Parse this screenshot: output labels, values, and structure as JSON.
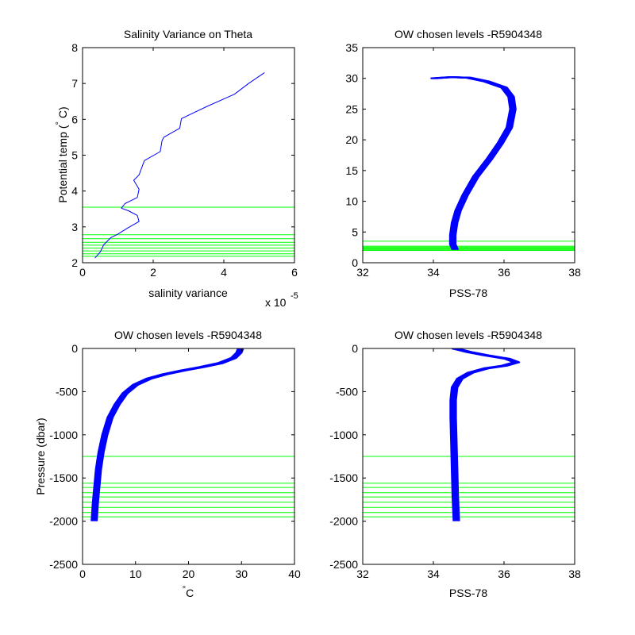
{
  "colors": {
    "data": "#0000ff",
    "levels": "#00ff00",
    "axes": "#000000"
  },
  "chart_data": [
    {
      "id": "p1",
      "type": "line",
      "title": "Salinity Variance on Theta",
      "xlabel": "salinity variance",
      "ylabel_main": "Potential temp",
      "ylabel_deg": "°",
      "ylabel_tail": " C)",
      "ylabel_paren": "(",
      "multiplier_text": "x 10",
      "multiplier_exp": "-5",
      "xlim": [
        0,
        6
      ],
      "ylim": [
        2,
        8
      ],
      "xticks": [
        0,
        2,
        4,
        6
      ],
      "xtick_labels": [
        "0",
        "2",
        "4",
        "6"
      ],
      "yticks": [
        2,
        3,
        4,
        5,
        6,
        7,
        8
      ],
      "ytick_labels": [
        "2",
        "3",
        "4",
        "5",
        "6",
        "7",
        "8"
      ],
      "grid": false,
      "series": [
        {
          "x": [
            0.35,
            0.5,
            0.6,
            0.8,
            1.0,
            1.3,
            1.6,
            1.55,
            1.3,
            1.1,
            1.2,
            1.55,
            1.6,
            1.45,
            1.6,
            1.75,
            2.2,
            2.25,
            2.3,
            2.75,
            2.8,
            3.5,
            4.3,
            4.7,
            5.15
          ],
          "y": [
            2.13,
            2.3,
            2.5,
            2.7,
            2.8,
            2.98,
            3.15,
            3.32,
            3.45,
            3.52,
            3.65,
            3.82,
            4.05,
            4.3,
            4.45,
            4.85,
            5.1,
            5.4,
            5.5,
            5.75,
            6.02,
            6.35,
            6.7,
            7.0,
            7.3
          ]
        }
      ],
      "hlines": [
        3.55,
        2.78,
        2.67,
        2.57,
        2.49,
        2.41,
        2.33,
        2.25,
        2.18
      ]
    },
    {
      "id": "p2",
      "type": "line",
      "title": "OW chosen levels -R5904348",
      "xlabel": "PSS-78",
      "xlim": [
        32,
        38
      ],
      "ylim": [
        0,
        35
      ],
      "xticks": [
        32,
        34,
        36,
        38
      ],
      "xtick_labels": [
        "32",
        "34",
        "36",
        "38"
      ],
      "yticks": [
        0,
        5,
        10,
        15,
        20,
        25,
        30,
        35
      ],
      "ytick_labels": [
        "0",
        "5",
        "10",
        "15",
        "20",
        "25",
        "30",
        "35"
      ],
      "grid": false,
      "series": [
        {
          "x": [
            34.62,
            34.55,
            34.55,
            34.6,
            34.7,
            34.9,
            35.2,
            35.6,
            35.9,
            36.15,
            36.25,
            36.2,
            36.0,
            35.5,
            35.0,
            34.5,
            34.0
          ],
          "y": [
            2.1,
            3.0,
            4.5,
            6.5,
            8.5,
            11,
            14,
            17,
            19.5,
            22,
            25,
            27,
            28.5,
            29.5,
            30.1,
            30.2,
            30.0
          ]
        }
      ],
      "band_offsets": [
        -0.08,
        -0.04,
        0,
        0.04,
        0.08
      ],
      "hlines": [
        3.5,
        2.7,
        2.55,
        2.4,
        2.25,
        2.1,
        2.0
      ]
    },
    {
      "id": "p3",
      "type": "line",
      "title": "OW chosen levels -R5904348",
      "xlabel": "C",
      "xlabel_deg": "°",
      "ylabel": "Pressure (dbar)",
      "xlim": [
        0,
        40
      ],
      "ylim": [
        -2500,
        0
      ],
      "xticks": [
        0,
        10,
        20,
        30,
        40
      ],
      "xtick_labels": [
        "0",
        "10",
        "20",
        "30",
        "40"
      ],
      "yticks": [
        -2500,
        -2000,
        -1500,
        -1000,
        -500,
        0
      ],
      "ytick_labels": [
        "-2500",
        "-2000",
        "-1500",
        "-1000",
        "-500",
        "0"
      ],
      "grid": false,
      "series": [
        {
          "x": [
            2.2,
            2.4,
            2.7,
            3.0,
            3.5,
            4.2,
            5.2,
            6.5,
            8.0,
            10.0,
            12.5,
            15.5,
            19.0,
            22.5,
            26.0,
            28.5,
            29.5,
            29.8
          ],
          "y": [
            -2000,
            -1800,
            -1600,
            -1400,
            -1200,
            -1000,
            -800,
            -650,
            -520,
            -420,
            -350,
            -300,
            -255,
            -215,
            -170,
            -110,
            -50,
            -5
          ]
        }
      ],
      "band_offsets": [
        -0.5,
        -0.25,
        0,
        0.25,
        0.5
      ],
      "hlines": [
        -1250,
        -1560,
        -1610,
        -1670,
        -1720,
        -1780,
        -1840,
        -1900,
        -1950
      ]
    },
    {
      "id": "p4",
      "type": "line",
      "title": "OW chosen levels -R5904348",
      "xlabel": "PSS-78",
      "xlim": [
        32,
        38
      ],
      "ylim": [
        -2500,
        0
      ],
      "xticks": [
        32,
        34,
        36,
        38
      ],
      "xtick_labels": [
        "32",
        "34",
        "36",
        "38"
      ],
      "yticks": [
        -2500,
        -2000,
        -1500,
        -1000,
        -500,
        0
      ],
      "ytick_labels": [
        "-2500",
        "-2000",
        "-1500",
        "-1000",
        "-500",
        "0"
      ],
      "grid": false,
      "series": [
        {
          "x": [
            34.65,
            34.62,
            34.6,
            34.58,
            34.56,
            34.56,
            34.6,
            34.75,
            35.05,
            35.5,
            36.0,
            36.35,
            36.1,
            35.5,
            35.0,
            34.7,
            34.6
          ],
          "y": [
            -2000,
            -1700,
            -1400,
            -1100,
            -800,
            -600,
            -450,
            -350,
            -280,
            -230,
            -200,
            -160,
            -120,
            -80,
            -40,
            -10,
            0
          ]
        }
      ],
      "band_offsets": [
        -0.08,
        -0.04,
        0,
        0.04,
        0.08
      ],
      "hlines": [
        -1250,
        -1560,
        -1610,
        -1670,
        -1720,
        -1780,
        -1840,
        -1900,
        -1950
      ]
    }
  ]
}
